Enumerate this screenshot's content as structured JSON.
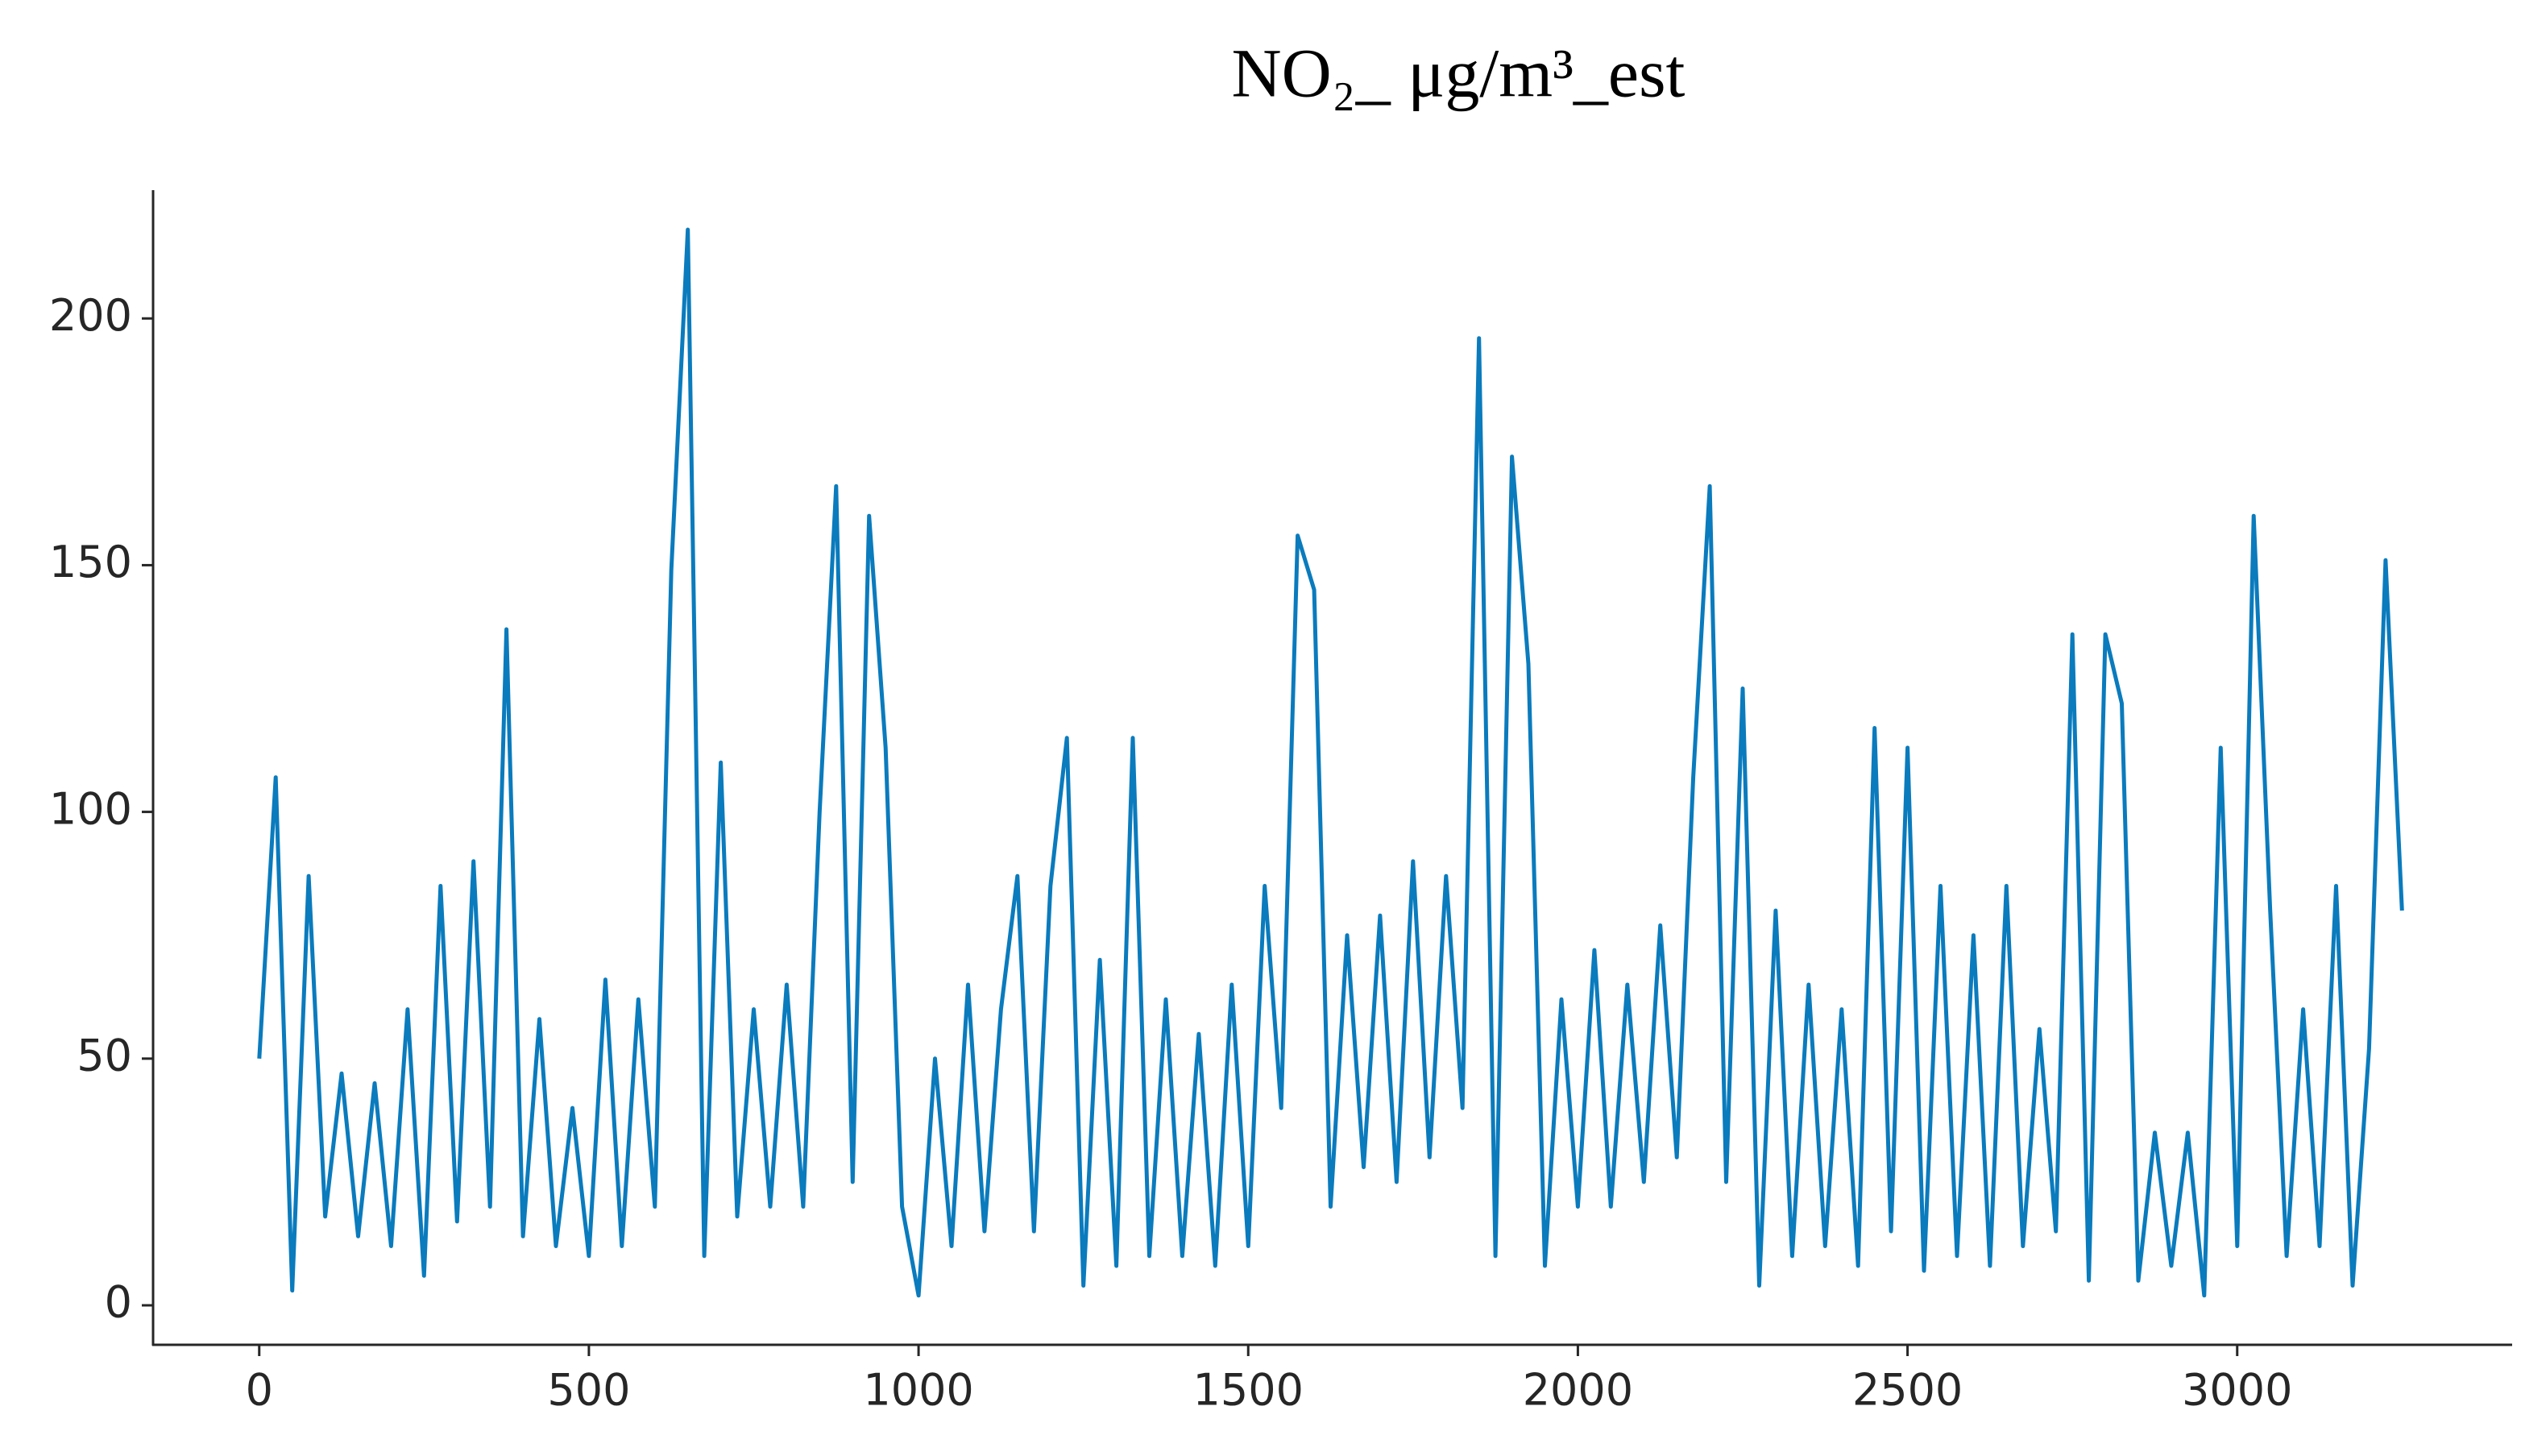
{
  "chart_data": {
    "type": "line",
    "title": "NO₂_ μg/m³_est",
    "x": [
      0,
      25,
      50,
      75,
      100,
      125,
      150,
      175,
      200,
      225,
      250,
      275,
      300,
      325,
      350,
      375,
      400,
      425,
      450,
      475,
      500,
      525,
      550,
      575,
      600,
      625,
      650,
      675,
      700,
      725,
      750,
      775,
      800,
      825,
      850,
      875,
      900,
      925,
      950,
      975,
      1000,
      1025,
      1050,
      1075,
      1100,
      1125,
      1150,
      1175,
      1200,
      1225,
      1250,
      1275,
      1300,
      1325,
      1350,
      1375,
      1400,
      1425,
      1450,
      1475,
      1500,
      1525,
      1550,
      1575,
      1600,
      1625,
      1650,
      1675,
      1700,
      1725,
      1750,
      1775,
      1800,
      1825,
      1850,
      1875,
      1900,
      1925,
      1950,
      1975,
      2000,
      2025,
      2050,
      2075,
      2100,
      2125,
      2150,
      2175,
      2200,
      2225,
      2250,
      2275,
      2300,
      2325,
      2350,
      2375,
      2400,
      2425,
      2450,
      2475,
      2500,
      2525,
      2550,
      2575,
      2600,
      2625,
      2650,
      2675,
      2700,
      2725,
      2750,
      2775,
      2800,
      2825,
      2850,
      2875,
      2900,
      2925,
      2950,
      2975,
      3000,
      3025,
      3050,
      3075,
      3100,
      3125,
      3150,
      3175,
      3200,
      3225,
      3250
    ],
    "series": [
      {
        "color": "#0a7bbd",
        "values": [
          50,
          107,
          3,
          87,
          18,
          47,
          14,
          45,
          12,
          60,
          6,
          85,
          17,
          90,
          20,
          137,
          14,
          58,
          12,
          40,
          10,
          66,
          12,
          62,
          20,
          149,
          218,
          10,
          110,
          18,
          60,
          20,
          65,
          20,
          100,
          166,
          25,
          160,
          113,
          20,
          2,
          50,
          12,
          65,
          15,
          60,
          87,
          15,
          85,
          115,
          4,
          70,
          8,
          115,
          10,
          62,
          10,
          55,
          8,
          65,
          12,
          85,
          40,
          156,
          145,
          20,
          75,
          28,
          79,
          25,
          90,
          30,
          87,
          40,
          196,
          10,
          172,
          130,
          8,
          62,
          20,
          72,
          20,
          65,
          25,
          77,
          30,
          107,
          166,
          25,
          125,
          4,
          80,
          10,
          65,
          12,
          60,
          8,
          117,
          15,
          113,
          7,
          85,
          10,
          75,
          8,
          85,
          12,
          56,
          15,
          136,
          5,
          136,
          122,
          5,
          35,
          8,
          35,
          2,
          113,
          12,
          160,
          80,
          10,
          60,
          12,
          85,
          4,
          52,
          151,
          80
        ]
      }
    ],
    "xlim": [
      -161,
      3417
    ],
    "ylim": [
      -8,
      226
    ],
    "xticks": [
      0,
      500,
      1000,
      1500,
      2000,
      2500,
      3000
    ],
    "yticks": [
      0,
      50,
      100,
      150,
      200
    ]
  }
}
